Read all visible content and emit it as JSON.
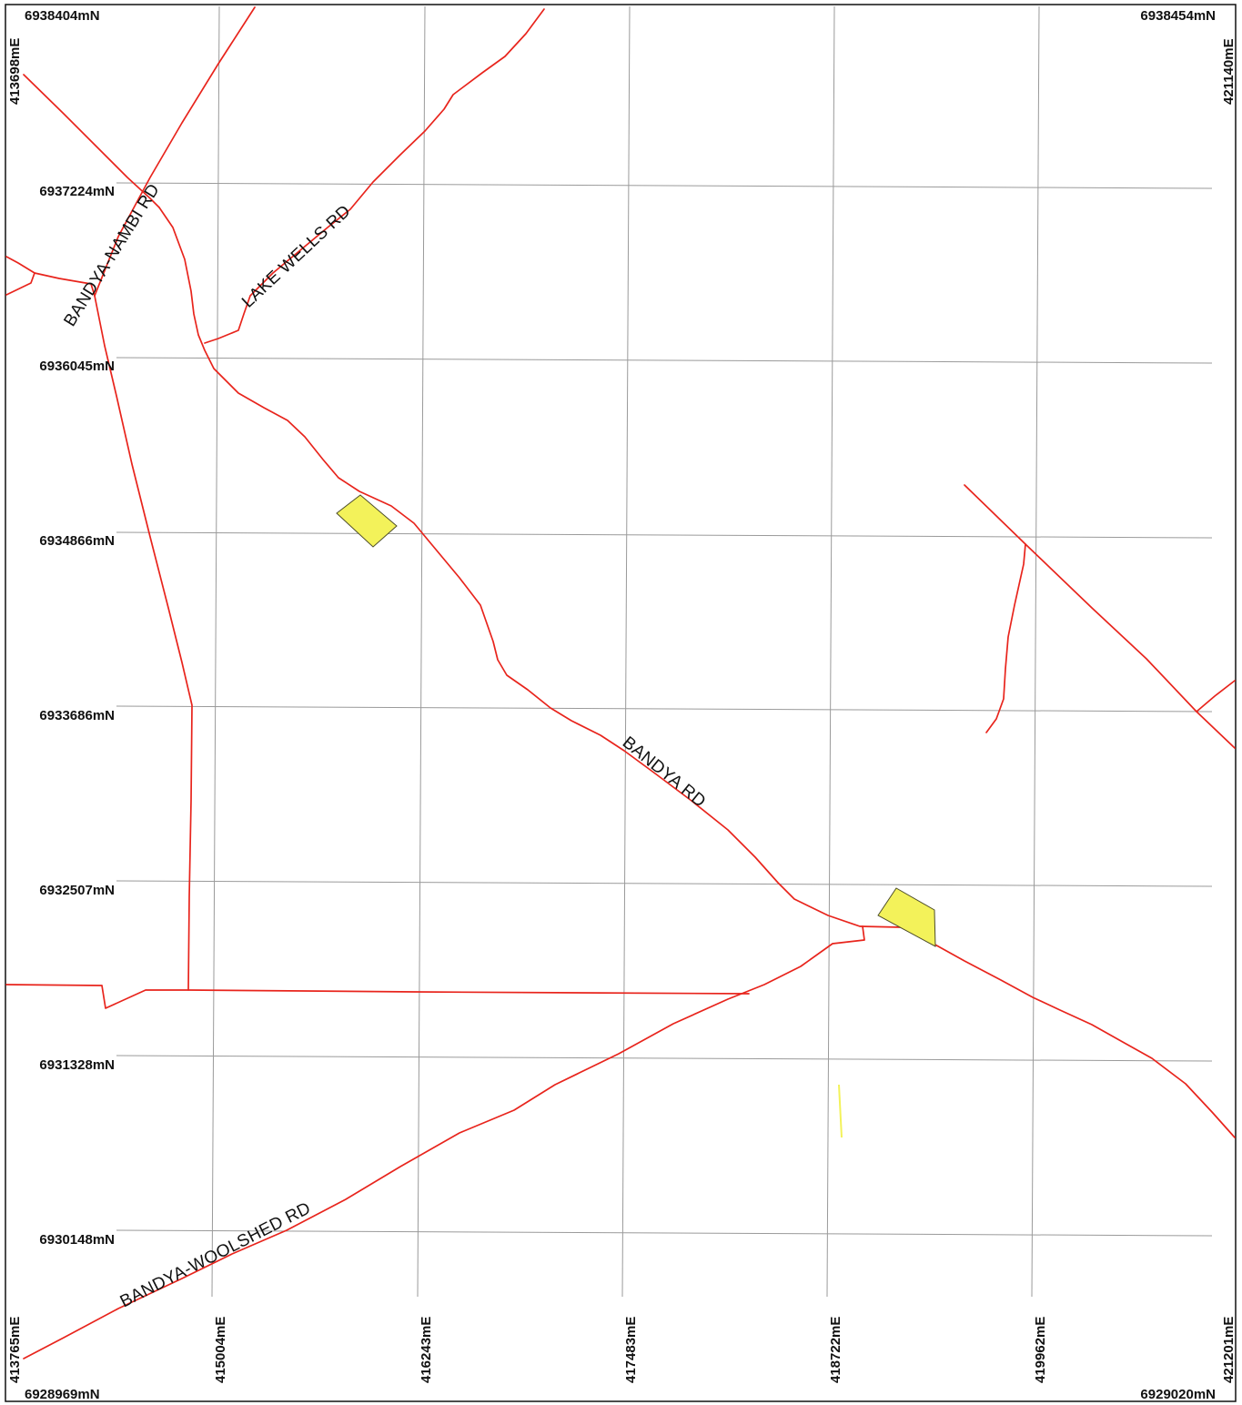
{
  "map": {
    "colors": {
      "road": "#e8241c",
      "grid": "#9a9a9a",
      "parcel_fill": "#f3f25a",
      "frame": "#111111",
      "background": "#ffffff"
    },
    "corner_labels": {
      "top_left_northing": "6938404mN",
      "top_right_northing": "6938454mN",
      "bottom_left_northing": "6928969mN",
      "bottom_right_northing": "6929020mN",
      "top_left_easting": "413698mE",
      "top_right_easting": "421140mE",
      "bottom_left_easting": "413765mE",
      "bottom_right_easting": "421201mE"
    },
    "northings": [
      "6937224mN",
      "6936045mN",
      "6934866mN",
      "6933686mN",
      "6932507mN",
      "6931328mN",
      "6930148mN"
    ],
    "eastings": [
      "415004mE",
      "416243mE",
      "417483mE",
      "418722mE",
      "419962mE"
    ],
    "roads": {
      "bandya_nambi": "BANDYA-NAMBI RD",
      "lake_wells": "LAKE WELLS RD",
      "bandya": "BANDYA RD",
      "bandya_woolshed": "BANDYA-WOOLSHED RD"
    },
    "parcels": 3
  }
}
